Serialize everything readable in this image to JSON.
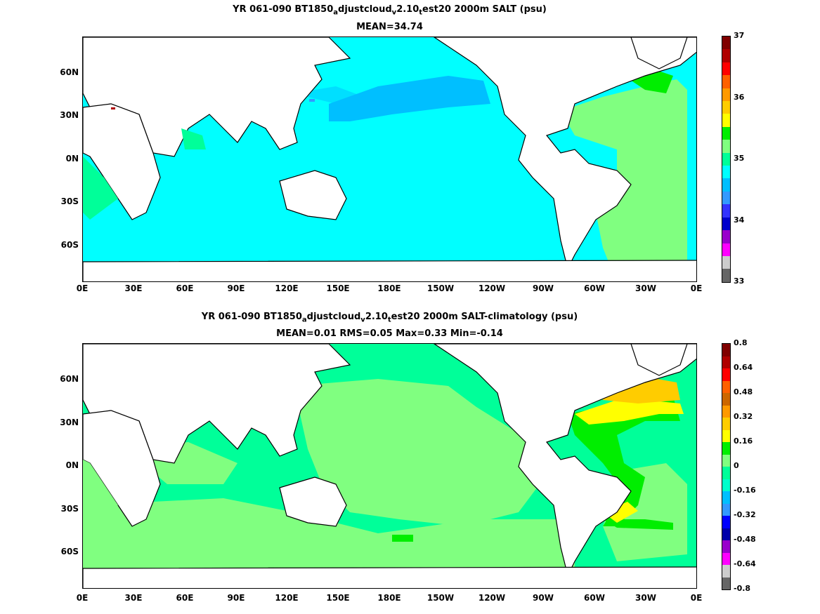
{
  "panels": [
    {
      "title_pre": "YR 061-090 BT1850",
      "title_sub1": "a",
      "title_mid": "djustcloud",
      "title_sub2": "v",
      "title_mid2": "2.10",
      "title_sub3": "t",
      "title_post": "est20 2000m SALT (psu)",
      "stats": "MEAN=34.74",
      "colorbar_labels": [
        "37",
        "36",
        "35",
        "34",
        "33"
      ],
      "colors": [
        "#800000",
        "#b00000",
        "#ff0000",
        "#ff6000",
        "#ff9900",
        "#ffcc00",
        "#ffff00",
        "#00ee00",
        "#80ff80",
        "#00ff99",
        "#00ffff",
        "#00bfff",
        "#3399ff",
        "#3333ff",
        "#0000cc",
        "#9900cc",
        "#ff00ff",
        "#cccccc",
        "#666666"
      ]
    },
    {
      "title_pre": "YR 061-090 BT1850",
      "title_sub1": "a",
      "title_mid": "djustcloud",
      "title_sub2": "v",
      "title_mid2": "2.10",
      "title_sub3": "t",
      "title_post": "est20 2000m SALT-climatology (psu)",
      "stats": "MEAN=0.01   RMS=0.05   Max=0.33   Min=-0.14",
      "colorbar_labels": [
        "0.8",
        "0.64",
        "0.48",
        "0.32",
        "0.16",
        "0",
        "-0.16",
        "-0.32",
        "-0.48",
        "-0.64",
        "-0.8"
      ],
      "colors": [
        "#800000",
        "#b00000",
        "#ff0000",
        "#ff6000",
        "#cc6600",
        "#ff9900",
        "#ffcc00",
        "#ffff00",
        "#00ee00",
        "#80ff80",
        "#00ff99",
        "#00ffcc",
        "#00bfff",
        "#3399ff",
        "#0000ff",
        "#0000aa",
        "#9900cc",
        "#ff00ff",
        "#cccccc",
        "#666666"
      ]
    }
  ],
  "lat_labels": [
    "60N",
    "30N",
    "0N",
    "30S",
    "60S"
  ],
  "lon_labels": [
    "0E",
    "30E",
    "60E",
    "90E",
    "120E",
    "150E",
    "180E",
    "150W",
    "120W",
    "90W",
    "60W",
    "30W",
    "0E"
  ]
}
